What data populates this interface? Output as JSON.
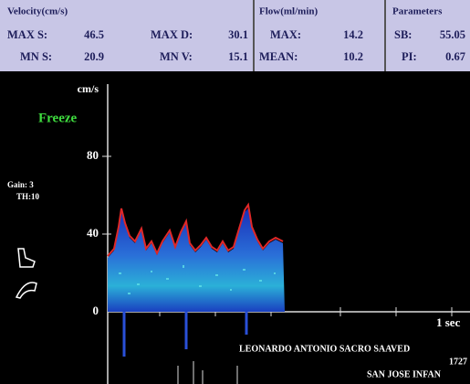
{
  "header": {
    "velocity": {
      "title": "Velocity(cm/s)",
      "rows": [
        [
          "MAX S:",
          "46.5",
          "MAX D:",
          "30.1"
        ],
        [
          "MN S:",
          "20.9",
          "MN V:",
          "15.1"
        ]
      ]
    },
    "flow": {
      "title": "Flow(ml/min)",
      "rows": [
        [
          "MAX:",
          "14.2"
        ],
        [
          "MEAN:",
          "10.2"
        ]
      ]
    },
    "parameters": {
      "title": "Parameters",
      "rows": [
        [
          "SB:",
          "55.05"
        ],
        [
          "PI:",
          "0.67"
        ]
      ]
    }
  },
  "display": {
    "status": "Freeze",
    "gain": "Gain: 3",
    "threshold": "TH:10",
    "axis_unit": "cm/s",
    "axis_ticks": [
      "80",
      "40",
      "0"
    ],
    "time_scale": "1 sec",
    "patient": [
      "LEONARDO ANTONIO SACRO SAAVED",
      "1727",
      "SAN JOSE INFAN"
    ]
  }
}
